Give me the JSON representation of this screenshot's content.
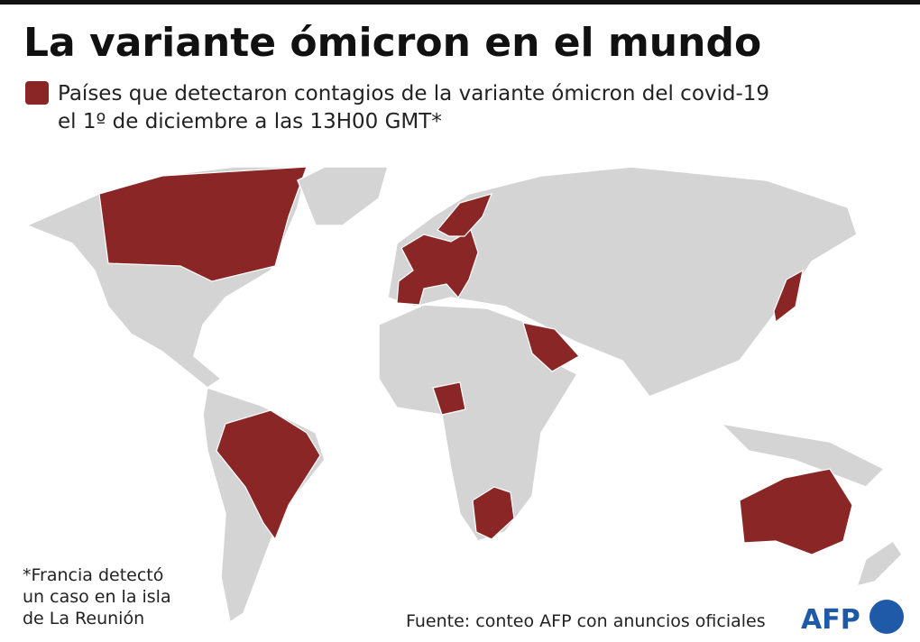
{
  "header": {
    "title": "La variante ómicron en el mundo"
  },
  "legend": {
    "label_line1": "Países que detectaron contagios de la variante ómicron del covid-19",
    "label_line2": "el 1º de diciembre a las 13H00 GMT*"
  },
  "footnote": {
    "lines": [
      "*Francia detectó",
      "un caso en la isla",
      "de La Reunión"
    ]
  },
  "source": "Fuente: conteo AFP con anuncios oficiales",
  "logo": "AFP"
}
